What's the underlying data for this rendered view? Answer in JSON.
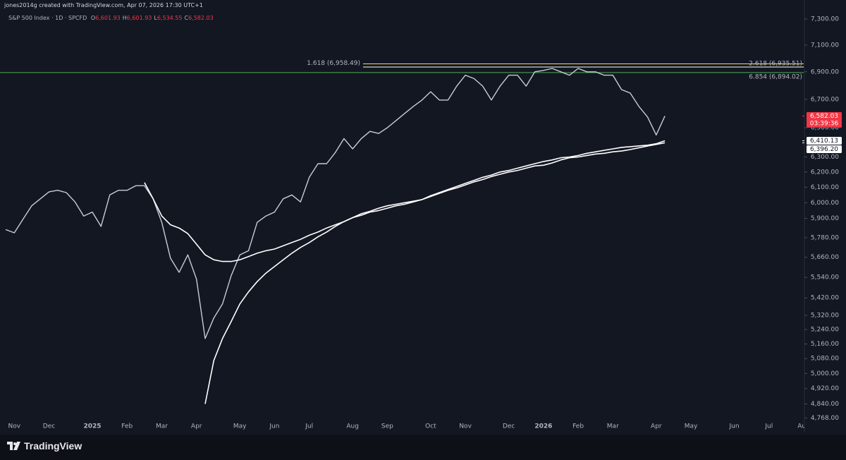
{
  "header": {
    "credit": "jones2014g created with TradingView.com, Apr 07, 2026 17:30 UTC+1"
  },
  "legend": {
    "ohlc": [
      {
        "key": "O",
        "value": "6,601.93"
      },
      {
        "key": "H",
        "value": "6,601.93"
      },
      {
        "key": "L",
        "value": "6,534.55"
      },
      {
        "key": "C",
        "value": "6,582.03"
      }
    ]
  },
  "footer": {
    "logo": "TradingView"
  },
  "chart_data": {
    "type": "line",
    "title": "S&P 500 Index · 1D · SPCFD",
    "log_scale": true,
    "grid": false,
    "ylim": [
      4755,
      7405
    ],
    "yticks": [
      {
        "value": 7300,
        "label": "7,300.00"
      },
      {
        "value": 7100,
        "label": "7,100.00"
      },
      {
        "value": 6900,
        "label": "6,900.00"
      },
      {
        "value": 6700,
        "label": "6,700.00"
      },
      {
        "value": 6500,
        "label": "6,500.00"
      },
      {
        "value": 6300,
        "label": "6,300.00"
      },
      {
        "value": 6200,
        "label": "6,200.00"
      },
      {
        "value": 6100,
        "label": "6,100.00"
      },
      {
        "value": 6000,
        "label": "6,000.00"
      },
      {
        "value": 5900,
        "label": "5,900.00"
      },
      {
        "value": 5780,
        "label": "5,780.00"
      },
      {
        "value": 5660,
        "label": "5,660.00"
      },
      {
        "value": 5540,
        "label": "5,540.00"
      },
      {
        "value": 5420,
        "label": "5,420.00"
      },
      {
        "value": 5320,
        "label": "5,320.00"
      },
      {
        "value": 5240,
        "label": "5,240.00"
      },
      {
        "value": 5160,
        "label": "5,160.00"
      },
      {
        "value": 5080,
        "label": "5,080.00"
      },
      {
        "value": 5000,
        "label": "5,000.00"
      },
      {
        "value": 4920,
        "label": "4,920.00"
      },
      {
        "value": 4840,
        "label": "4,840.00"
      },
      {
        "value": 4768,
        "label": "4,768.00"
      }
    ],
    "categories": [
      null,
      "Nov",
      null,
      null,
      null,
      "Dec",
      null,
      null,
      null,
      null,
      "2025",
      null,
      null,
      null,
      "Feb",
      null,
      null,
      null,
      "Mar",
      null,
      null,
      null,
      "Apr",
      null,
      null,
      null,
      null,
      "May",
      null,
      null,
      null,
      "Jun",
      null,
      null,
      null,
      "Jul",
      null,
      null,
      null,
      null,
      "Aug",
      null,
      null,
      null,
      "Sep",
      null,
      null,
      null,
      null,
      "Oct",
      null,
      null,
      null,
      "Nov",
      null,
      null,
      null,
      null,
      "Dec",
      null,
      null,
      null,
      "2026",
      null,
      null,
      null,
      "Feb",
      null,
      null,
      null,
      "Mar",
      null,
      null,
      null,
      null,
      "Apr",
      null,
      null,
      null,
      "May",
      null,
      null,
      null,
      null,
      "Jun",
      null,
      null,
      null,
      "Jul",
      null,
      null,
      null,
      "Aug"
    ],
    "series": [
      {
        "color": "#c9ccd6",
        "values": [
          5830,
          5810,
          5895,
          5980,
          6025,
          6070,
          6080,
          6065,
          6005,
          5915,
          5940,
          5850,
          6050,
          6080,
          6080,
          6110,
          6110,
          6025,
          5875,
          5655,
          5570,
          5675,
          5530,
          5190,
          5305,
          5385,
          5550,
          5675,
          5700,
          5875,
          5915,
          5940,
          6025,
          6050,
          6005,
          6165,
          6255,
          6255,
          6330,
          6425,
          6355,
          6425,
          6475,
          6460,
          6500,
          6550,
          6600,
          6650,
          6695,
          6755,
          6695,
          6695,
          6795,
          6875,
          6850,
          6795,
          6695,
          6795,
          6875,
          6875,
          6795,
          6900,
          6910,
          6925,
          6900,
          6875,
          6925,
          6900,
          6900,
          6875,
          6875,
          6770,
          6745,
          6650,
          6575,
          6450,
          6582.03,
          null,
          null,
          null,
          null,
          null,
          null,
          null,
          null,
          null,
          null,
          null,
          null,
          null,
          null,
          null,
          null
        ]
      },
      {
        "color": "#ffffff",
        "values": [
          null,
          null,
          null,
          null,
          null,
          null,
          null,
          null,
          null,
          null,
          null,
          null,
          null,
          null,
          null,
          null,
          6130,
          6025,
          5915,
          5860,
          5840,
          5805,
          5740,
          5675,
          5645,
          5635,
          5635,
          5645,
          5665,
          5685,
          5700,
          5710,
          5730,
          5750,
          5770,
          5795,
          5815,
          5840,
          5860,
          5880,
          5905,
          5920,
          5940,
          5950,
          5965,
          5980,
          5990,
          6005,
          6020,
          6045,
          6065,
          6085,
          6105,
          6125,
          6145,
          6165,
          6180,
          6200,
          6210,
          6225,
          6240,
          6255,
          6270,
          6280,
          6295,
          6300,
          6310,
          6325,
          6335,
          6345,
          6355,
          6365,
          6370,
          6375,
          6380,
          6390,
          6410.13,
          null,
          null,
          null,
          null,
          null,
          null,
          null,
          null,
          null,
          null,
          null,
          null,
          null,
          null,
          null,
          null
        ]
      },
      {
        "color": "#ffffff",
        "values": [
          null,
          null,
          null,
          null,
          null,
          null,
          null,
          null,
          null,
          null,
          null,
          null,
          null,
          null,
          null,
          null,
          null,
          null,
          null,
          null,
          null,
          null,
          null,
          4840,
          5070,
          5190,
          5285,
          5385,
          5455,
          5515,
          5565,
          5605,
          5645,
          5685,
          5720,
          5750,
          5785,
          5815,
          5850,
          5880,
          5905,
          5930,
          5945,
          5965,
          5980,
          5990,
          6000,
          6010,
          6020,
          6040,
          6060,
          6080,
          6095,
          6115,
          6135,
          6150,
          6170,
          6185,
          6200,
          6210,
          6225,
          6240,
          6245,
          6260,
          6280,
          6295,
          6300,
          6310,
          6320,
          6325,
          6335,
          6340,
          6350,
          6362,
          6374,
          6385,
          6396.2,
          null,
          null,
          null,
          null,
          null,
          null,
          null,
          null,
          null,
          null,
          null,
          null,
          null,
          null,
          null,
          null
        ]
      }
    ],
    "levels": [
      {
        "label": "1.618 (6,958.49)",
        "value": 6958.49,
        "color": "#f5d94e",
        "extends": "partial",
        "label_side": "left"
      },
      {
        "label": "2.618 (6,935.51)",
        "value": 6935.51,
        "color": "#ffffff",
        "extends": "partial",
        "label_side": "right"
      },
      {
        "label": "6.854 (6,894.02)",
        "value": 6894.02,
        "color": "#4caf50",
        "extends": "full",
        "label_side": "right"
      }
    ],
    "price_tags": [
      {
        "value": 6582.03,
        "label": "6,582.03",
        "sub": "03:39:36",
        "color": "#f23645",
        "text_color": "#ffffff"
      },
      {
        "value": 6410.13,
        "label": "6,410.13",
        "color": "#ffffff",
        "text_color": "#131722"
      },
      {
        "value": 6396.2,
        "label": "6,396.20",
        "color": "#ffffff",
        "text_color": "#131722"
      }
    ]
  }
}
